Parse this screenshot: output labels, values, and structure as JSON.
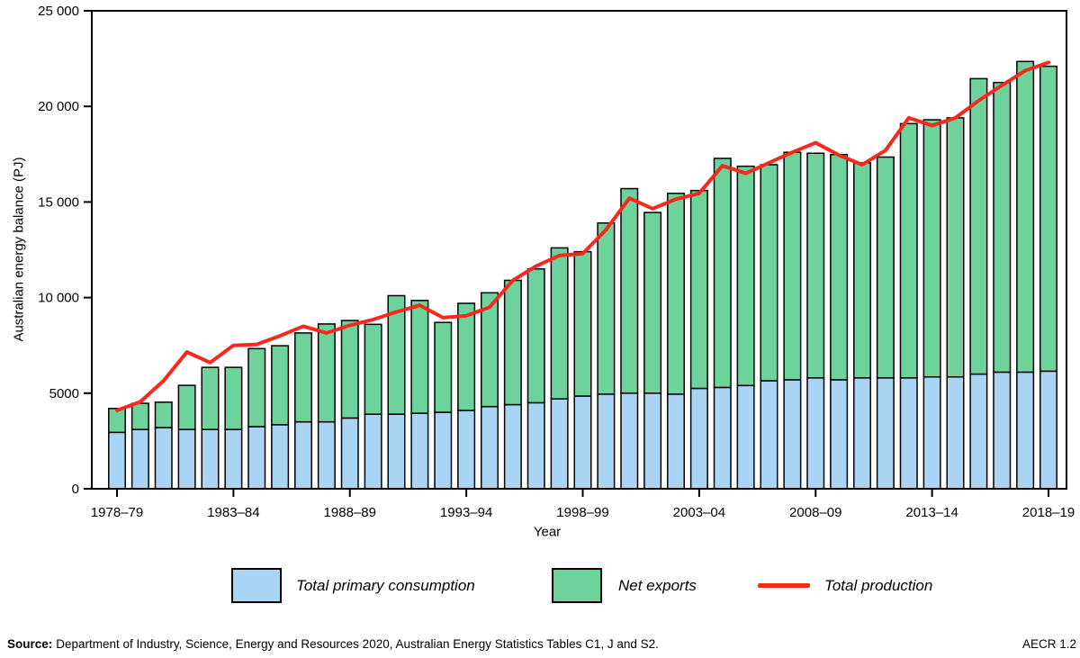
{
  "chart_data": {
    "type": "bar",
    "subtype": "stacked-bars-with-line-overlay",
    "title": "",
    "xlabel": "Year",
    "ylabel": "Australian energy balance (PJ)",
    "ylim": [
      0,
      25000
    ],
    "grid": false,
    "frame": true,
    "legend_position": "bottom",
    "bar_outline_color": "#000000",
    "ytick_values": [
      0,
      5000,
      10000,
      15000,
      20000,
      25000
    ],
    "ytick_labels": [
      "0",
      "5000",
      "10 000",
      "15 000",
      "20 000",
      "25 000"
    ],
    "xtick_indices": [
      0,
      5,
      10,
      15,
      20,
      25,
      30,
      35,
      40
    ],
    "xtick_labels": [
      "1978–79",
      "1983–84",
      "1988–89",
      "1993–94",
      "1998–99",
      "2003–04",
      "2008–09",
      "2013–14",
      "2018–19"
    ],
    "categories": [
      "1978–79",
      "1979–80",
      "1980–81",
      "1981–82",
      "1982–83",
      "1983–84",
      "1984–85",
      "1985–86",
      "1986–87",
      "1987–88",
      "1988–89",
      "1989–90",
      "1990–91",
      "1991–92",
      "1992–93",
      "1993–94",
      "1994–95",
      "1995–96",
      "1996–97",
      "1997–98",
      "1998–99",
      "1999–00",
      "2000–01",
      "2001–02",
      "2002–03",
      "2003–04",
      "2004–05",
      "2005–06",
      "2006–07",
      "2007–08",
      "2008–09",
      "2009–10",
      "2010–11",
      "2011–12",
      "2012–13",
      "2013–14",
      "2014–15",
      "2015–16",
      "2016–17",
      "2017–18",
      "2018–19"
    ],
    "series": [
      {
        "name": "Total primary consumption",
        "type": "bar-stack-bottom",
        "color": "#a9d4f3",
        "values": [
          2950,
          3100,
          3200,
          3100,
          3100,
          3100,
          3250,
          3350,
          3500,
          3500,
          3700,
          3900,
          3900,
          3950,
          4000,
          4100,
          4300,
          4400,
          4500,
          4700,
          4850,
          4950,
          5000,
          5000,
          4950,
          5250,
          5300,
          5400,
          5650,
          5700,
          5800,
          5700,
          5800,
          5800,
          5800,
          5850,
          5850,
          6000,
          6100,
          6100,
          6150
        ]
      },
      {
        "name": "Net exports",
        "type": "bar-stack-top",
        "color": "#6dd29c",
        "values": [
          1250,
          1370,
          1330,
          2310,
          3250,
          3250,
          4080,
          4130,
          4650,
          5120,
          5100,
          4700,
          6200,
          5900,
          4700,
          5600,
          5950,
          6500,
          7000,
          7900,
          7550,
          8950,
          10700,
          9450,
          10500,
          10350,
          11980,
          11470,
          11300,
          11900,
          11750,
          11780,
          11250,
          11550,
          13300,
          13450,
          13550,
          15450,
          15150,
          16250,
          15950
        ]
      },
      {
        "name": "Total production",
        "type": "line",
        "color": "#f8281c",
        "values": [
          4100,
          4550,
          5650,
          7150,
          6600,
          7500,
          7550,
          8000,
          8500,
          8150,
          8550,
          8850,
          9250,
          9600,
          8950,
          9050,
          9500,
          10900,
          11650,
          12200,
          12300,
          13550,
          15200,
          14650,
          15150,
          15450,
          16900,
          16500,
          17050,
          17600,
          18100,
          17450,
          16950,
          17700,
          19400,
          19000,
          19400,
          20300,
          21100,
          21870,
          22300
        ]
      }
    ]
  },
  "footer": {
    "source_label": "Source:",
    "source_text": "Department of Industry, Science, Energy and Resources 2020, Australian Energy Statistics Tables C1, J and S2.",
    "code": "AECR 1.2"
  }
}
